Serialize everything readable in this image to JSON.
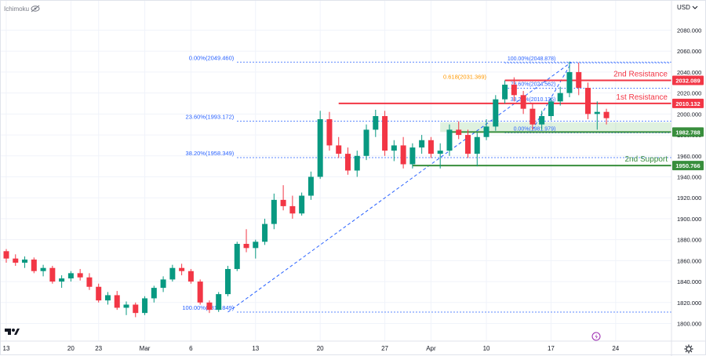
{
  "chart_data": {
    "type": "candlestick",
    "indicator_label": "Ichimoku",
    "currency": "USD",
    "ylim": [
      1790,
      2100
    ],
    "y_ticks": [
      1800,
      1820,
      1840,
      1860,
      1880,
      1900,
      1920,
      1940,
      1960,
      1980,
      2000,
      2020,
      2040,
      2060,
      2080
    ],
    "x_ticks": [
      {
        "label": "13",
        "t": 0
      },
      {
        "label": "20",
        "t": 7
      },
      {
        "label": "23",
        "t": 10
      },
      {
        "label": "Mar",
        "t": 15
      },
      {
        "label": "6",
        "t": 20
      },
      {
        "label": "13",
        "t": 27
      },
      {
        "label": "20",
        "t": 34
      },
      {
        "label": "27",
        "t": 41
      },
      {
        "label": "Apr",
        "t": 46
      },
      {
        "label": "10",
        "t": 52
      },
      {
        "label": "17",
        "t": 59
      },
      {
        "label": "24",
        "t": 66
      }
    ],
    "fibonacci_low": [
      {
        "label": "0.00%(2049.460)",
        "value": 2049.46
      },
      {
        "label": "23.60%(1993.172)",
        "value": 1993.172
      },
      {
        "label": "38.20%(1958.349)",
        "value": 1958.349
      },
      {
        "label": "100.00%(1810.849)",
        "value": 1810.849
      }
    ],
    "fibonacci_high": [
      {
        "label": "100.00%(2048.878)",
        "value": 2048.878
      },
      {
        "label": "78.60%(2024.562)",
        "value": 2024.562
      },
      {
        "label": "38.20%(2010.135)",
        "value": 2010.135
      },
      {
        "label": "0.00%(1981.979)",
        "value": 1981.979
      }
    ],
    "extension_label": {
      "label": "0.618(2031.369)",
      "value": 2031.369
    },
    "levels": [
      {
        "name": "2nd Resistance",
        "value": 2032.089,
        "color": "#f23645",
        "price_label": "2032.089"
      },
      {
        "name": "1st Resistance",
        "value": 2010.132,
        "color": "#f23645",
        "price_label": "2010.132"
      },
      {
        "name": "",
        "value": 1982.788,
        "color": "#388e3c",
        "price_label": "1982.788"
      },
      {
        "name": "2nd Support",
        "value": 1950.766,
        "color": "#388e3c",
        "price_label": "1950.766"
      }
    ],
    "support_zone": [
      1982.788,
      1992
    ],
    "ohlc": [
      [
        1869,
        1871,
        1858,
        1862
      ],
      [
        1862,
        1866,
        1855,
        1858
      ],
      [
        1858,
        1864,
        1853,
        1861
      ],
      [
        1861,
        1863,
        1848,
        1850
      ],
      [
        1850,
        1856,
        1845,
        1853
      ],
      [
        1853,
        1855,
        1838,
        1840
      ],
      [
        1840,
        1846,
        1834,
        1843
      ],
      [
        1843,
        1850,
        1840,
        1848
      ],
      [
        1848,
        1852,
        1841,
        1844
      ],
      [
        1844,
        1848,
        1832,
        1835
      ],
      [
        1835,
        1838,
        1820,
        1822
      ],
      [
        1822,
        1830,
        1818,
        1827
      ],
      [
        1827,
        1831,
        1813,
        1815
      ],
      [
        1815,
        1821,
        1808,
        1818
      ],
      [
        1818,
        1820,
        1806,
        1810
      ],
      [
        1810,
        1826,
        1808,
        1824
      ],
      [
        1824,
        1836,
        1820,
        1834
      ],
      [
        1834,
        1845,
        1830,
        1842
      ],
      [
        1842,
        1856,
        1840,
        1853
      ],
      [
        1853,
        1857,
        1846,
        1850
      ],
      [
        1850,
        1852,
        1838,
        1840
      ],
      [
        1840,
        1842,
        1818,
        1820
      ],
      [
        1820,
        1822,
        1810,
        1813
      ],
      [
        1813,
        1830,
        1811,
        1828
      ],
      [
        1828,
        1855,
        1826,
        1852
      ],
      [
        1852,
        1878,
        1850,
        1876
      ],
      [
        1876,
        1890,
        1868,
        1872
      ],
      [
        1872,
        1880,
        1862,
        1878
      ],
      [
        1878,
        1900,
        1875,
        1895
      ],
      [
        1895,
        1924,
        1890,
        1918
      ],
      [
        1918,
        1932,
        1908,
        1912
      ],
      [
        1912,
        1922,
        1900,
        1905
      ],
      [
        1905,
        1925,
        1903,
        1922
      ],
      [
        1922,
        1945,
        1918,
        1940
      ],
      [
        1940,
        2003,
        1938,
        1995
      ],
      [
        1995,
        2002,
        1965,
        1970
      ],
      [
        1970,
        1978,
        1958,
        1962
      ],
      [
        1962,
        1968,
        1942,
        1946
      ],
      [
        1946,
        1965,
        1940,
        1960
      ],
      [
        1960,
        1990,
        1956,
        1985
      ],
      [
        1985,
        2004,
        1978,
        1998
      ],
      [
        1998,
        2003,
        1960,
        1965
      ],
      [
        1965,
        1975,
        1955,
        1970
      ],
      [
        1970,
        1978,
        1948,
        1952
      ],
      [
        1952,
        1972,
        1948,
        1968
      ],
      [
        1968,
        1980,
        1962,
        1975
      ],
      [
        1975,
        1978,
        1958,
        1962
      ],
      [
        1962,
        1972,
        1948,
        1965
      ],
      [
        1965,
        1990,
        1960,
        1985
      ],
      [
        1985,
        1993,
        1976,
        1980
      ],
      [
        1980,
        1985,
        1958,
        1962
      ],
      [
        1962,
        1982,
        1950,
        1978
      ],
      [
        1978,
        1995,
        1975,
        1988
      ],
      [
        1988,
        2018,
        1984,
        2014
      ],
      [
        2014,
        2032,
        2010,
        2028
      ],
      [
        2028,
        2035,
        2012,
        2018
      ],
      [
        2018,
        2022,
        2000,
        2005
      ],
      [
        2005,
        2010,
        1985,
        1990
      ],
      [
        1990,
        2003,
        1985,
        1998
      ],
      [
        1998,
        2015,
        1994,
        2012
      ],
      [
        2012,
        2026,
        2008,
        2020
      ],
      [
        2020,
        2050,
        2016,
        2040
      ],
      [
        2040,
        2049,
        2018,
        2025
      ],
      [
        2025,
        2030,
        1995,
        2000
      ],
      [
        2000,
        2012,
        1985,
        2002
      ],
      [
        2002,
        2005,
        1990,
        1996
      ]
    ]
  }
}
